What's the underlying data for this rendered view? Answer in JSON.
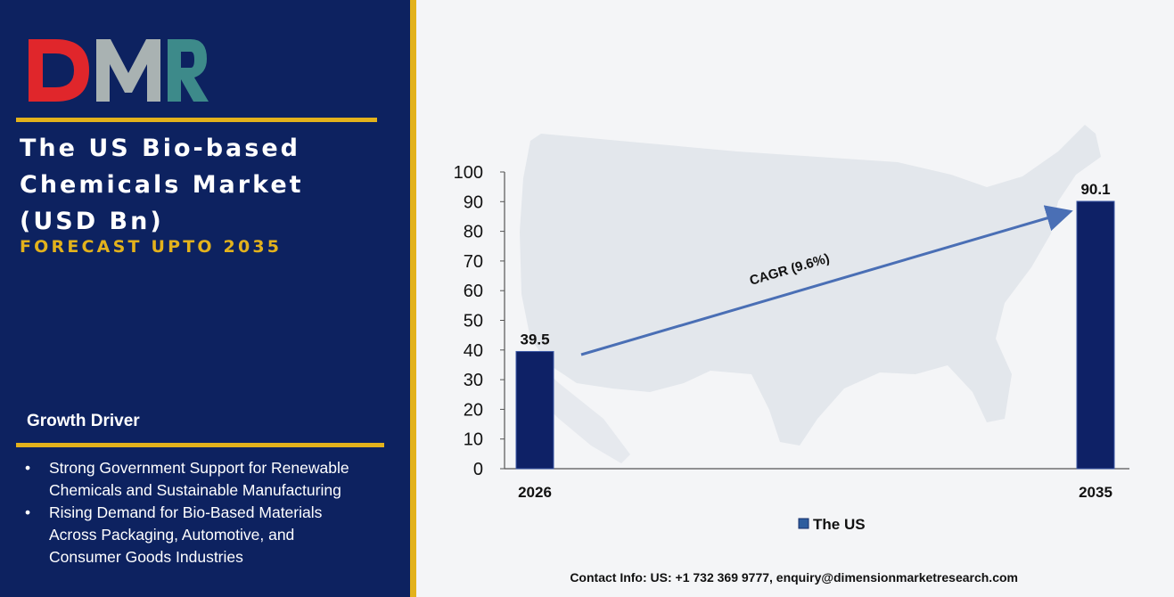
{
  "brand": {
    "logo_text": "DMR",
    "logo_colors": {
      "red": "#e0262b",
      "gray": "#a9b2b2",
      "teal": "#3d8a8a"
    }
  },
  "header": {
    "title_lines": [
      "The US Bio-based",
      "Chemicals Market",
      "(USD Bn)"
    ],
    "subtitle": "FORECAST UPTO 2035"
  },
  "growth": {
    "heading": "Growth Driver",
    "bullet": "•",
    "items": [
      {
        "lines": [
          "Strong Government Support for Renewable",
          "Chemicals and Sustainable Manufacturing"
        ]
      },
      {
        "lines": [
          "Rising Demand for Bio-Based Materials",
          "Across Packaging, Automotive, and",
          "Consumer Goods Industries"
        ]
      }
    ]
  },
  "colors": {
    "panel": "#0d2260",
    "accent": "#e3b21c",
    "bar": "#0e2166",
    "arrow": "#4a6fb5",
    "map": "#dfe4ea"
  },
  "chart_data": {
    "type": "bar",
    "categories": [
      "2026",
      "2035"
    ],
    "series": [
      {
        "name": "The US",
        "values": [
          39.5,
          90.1
        ]
      }
    ],
    "data_labels": [
      "39.5",
      "90.1"
    ],
    "ylim": [
      0,
      100
    ],
    "yticks": [
      0,
      10,
      20,
      30,
      40,
      50,
      60,
      70,
      80,
      90,
      100
    ],
    "annotation": "CAGR (9.6%)",
    "legend_position": "bottom",
    "grid": false
  },
  "footer": {
    "contact": "Contact Info: US: +1 732 369 9777, enquiry@dimensionmarketresearch.com"
  }
}
